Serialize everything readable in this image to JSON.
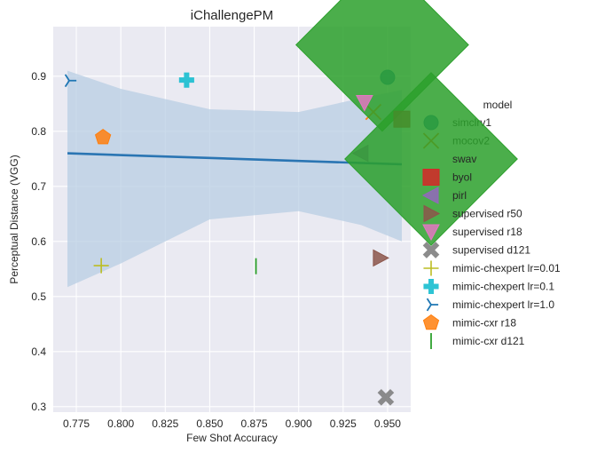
{
  "chart_data": {
    "type": "scatter",
    "title": "iChallengePM",
    "xlabel": "Few Shot Accuracy",
    "ylabel": "Perceptual Distance (VGG)",
    "xlim": [
      0.762,
      0.963
    ],
    "ylim": [
      0.29,
      0.99
    ],
    "xticks": [
      0.775,
      0.8,
      0.825,
      0.85,
      0.875,
      0.9,
      0.925,
      0.95
    ],
    "xtick_labels": [
      "0.775",
      "0.800",
      "0.825",
      "0.850",
      "0.875",
      "0.900",
      "0.925",
      "0.950"
    ],
    "yticks": [
      0.3,
      0.4,
      0.5,
      0.6,
      0.7,
      0.8,
      0.9
    ],
    "ytick_labels": [
      "0.3",
      "0.4",
      "0.5",
      "0.6",
      "0.7",
      "0.8",
      "0.9"
    ],
    "grid": true,
    "legend_title": "model",
    "legend_position": "right",
    "series": [
      {
        "name": "simclrv1",
        "marker": "circle",
        "color": "#1f77b4",
        "x": 0.95,
        "y": 0.898
      },
      {
        "name": "mocov2",
        "marker": "x",
        "color": "#ff7f0e",
        "x": 0.942,
        "y": 0.835
      },
      {
        "name": "swav",
        "marker": "diamond",
        "color": "#2ca02c",
        "x": 0.947,
        "y": 0.957
      },
      {
        "name": "byol",
        "marker": "square",
        "color": "#d62728",
        "x": 0.958,
        "y": 0.822
      },
      {
        "name": "pirl",
        "marker": "triangle-left",
        "color": "#9467bd",
        "x": 0.935,
        "y": 0.76
      },
      {
        "name": "supervised r50",
        "marker": "triangle-right",
        "color": "#8c564b",
        "x": 0.946,
        "y": 0.57
      },
      {
        "name": "supervised r18",
        "marker": "triangle-down",
        "color": "#e377c2",
        "x": 0.937,
        "y": 0.852
      },
      {
        "name": "supervised d121",
        "marker": "x-filled",
        "color": "#7f7f7f",
        "x": 0.949,
        "y": 0.317
      },
      {
        "name": "mimic-chexpert lr=0.01",
        "marker": "plus",
        "color": "#bcbd22",
        "x": 0.789,
        "y": 0.556
      },
      {
        "name": "mimic-chexpert lr=0.1",
        "marker": "plus-filled",
        "color": "#17becf",
        "x": 0.837,
        "y": 0.893
      },
      {
        "name": "mimic-chexpert lr=1.0",
        "marker": "tri-left",
        "color": "#1f77b4",
        "x": 0.771,
        "y": 0.892
      },
      {
        "name": "mimic-cxr r18",
        "marker": "pentagon",
        "color": "#ff7f0e",
        "x": 0.79,
        "y": 0.789
      },
      {
        "name": "mimic-cxr d121",
        "marker": "vline",
        "color": "#2ca02c",
        "x": 0.876,
        "y": 0.555
      }
    ],
    "regression": {
      "color": "#2a75b3",
      "x_start": 0.77,
      "y_start": 0.76,
      "x_end": 0.958,
      "y_end": 0.74,
      "band": {
        "color": "#b8cde3",
        "upper": [
          [
            0.77,
            0.91
          ],
          [
            0.8,
            0.877
          ],
          [
            0.85,
            0.84
          ],
          [
            0.9,
            0.835
          ],
          [
            0.935,
            0.86
          ],
          [
            0.958,
            0.875
          ]
        ],
        "lower": [
          [
            0.77,
            0.517
          ],
          [
            0.8,
            0.56
          ],
          [
            0.85,
            0.64
          ],
          [
            0.9,
            0.655
          ],
          [
            0.935,
            0.63
          ],
          [
            0.958,
            0.6
          ]
        ]
      }
    }
  }
}
